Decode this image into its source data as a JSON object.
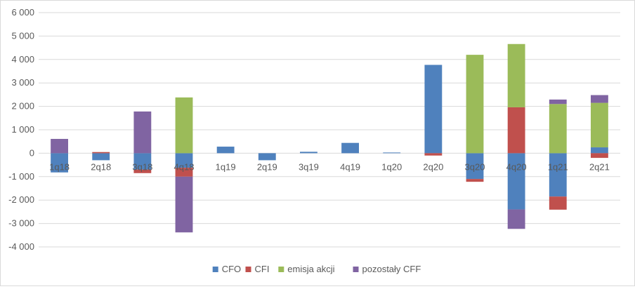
{
  "chart_data": {
    "type": "bar",
    "stacked": true,
    "title": "",
    "xlabel": "",
    "ylabel": "",
    "ylim": [
      -4000,
      6000
    ],
    "yticks": [
      -4000,
      -3000,
      -2000,
      -1000,
      0,
      1000,
      2000,
      3000,
      4000,
      5000,
      6000
    ],
    "ytick_labels": [
      "-4 000",
      "-3 000",
      "-2 000",
      "-1 000",
      "0",
      "1 000",
      "2 000",
      "3 000",
      "4 000",
      "5 000",
      "6 000"
    ],
    "grid": true,
    "legend_position": "bottom",
    "categories": [
      "1q18",
      "2q18",
      "3q18",
      "4q18",
      "1q19",
      "2q19",
      "3q19",
      "4q19",
      "1q20",
      "2q20",
      "3q20",
      "4q20",
      "1q21",
      "2q21"
    ],
    "series": [
      {
        "name": "CFO",
        "color": "#4f81bd",
        "values": [
          -820,
          -300,
          -700,
          -620,
          280,
          -300,
          60,
          440,
          30,
          3770,
          -1100,
          -2400,
          -1850,
          250
        ]
      },
      {
        "name": "CFI",
        "color": "#c0504d",
        "values": [
          0,
          50,
          -150,
          -380,
          0,
          0,
          0,
          0,
          0,
          -100,
          -120,
          1960,
          -560,
          -200
        ]
      },
      {
        "name": "emisja akcji",
        "color": "#9bbb59",
        "values": [
          0,
          0,
          0,
          2380,
          0,
          0,
          0,
          0,
          0,
          0,
          4200,
          2700,
          2100,
          1900
        ]
      },
      {
        "name": "pozostały CFF",
        "color": "#8064a2",
        "values": [
          610,
          0,
          1780,
          -2380,
          0,
          0,
          0,
          0,
          0,
          0,
          0,
          -830,
          190,
          330
        ]
      }
    ]
  }
}
